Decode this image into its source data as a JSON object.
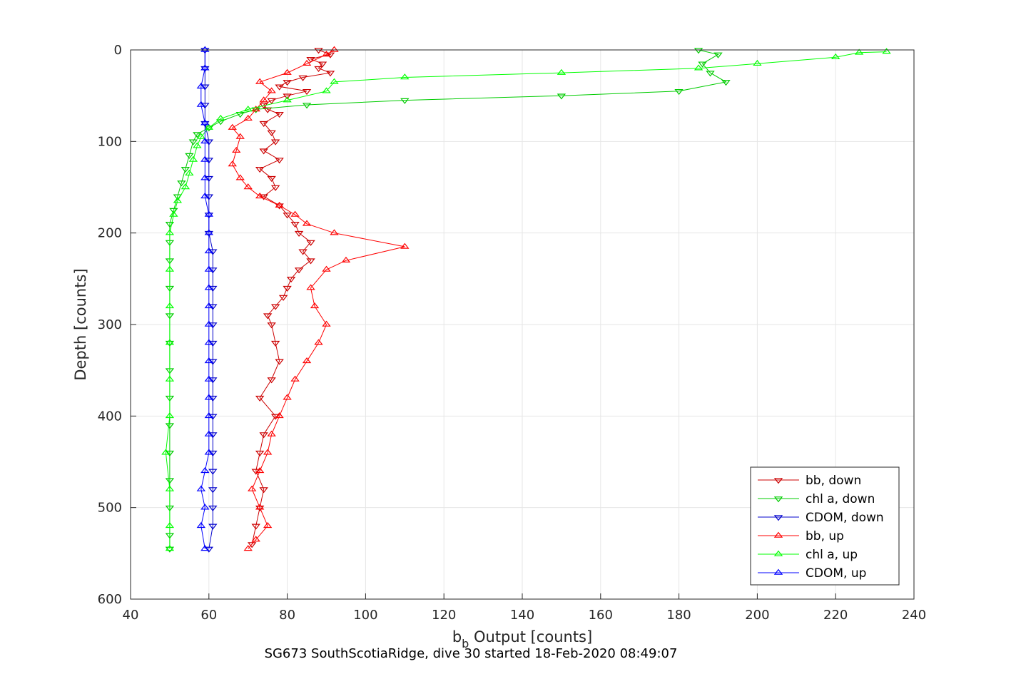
{
  "chart_data": {
    "type": "line",
    "title": "",
    "caption": "SG673 SouthScotiaRidge, dive 30 started 18-Feb-2020 08:49:07",
    "xlabel_main": "b",
    "xlabel_sub": "b",
    "xlabel_rest": " Output [counts]",
    "ylabel": "Depth [counts]",
    "xlim": [
      40,
      240
    ],
    "ylim": [
      0,
      600
    ],
    "y_reversed": true,
    "grid": true,
    "legend_position": "bottom-right",
    "xticks": [
      "40",
      "60",
      "80",
      "100",
      "120",
      "140",
      "160",
      "180",
      "200",
      "220",
      "240"
    ],
    "yticks": [
      "0",
      "100",
      "200",
      "300",
      "400",
      "500",
      "600"
    ],
    "series": [
      {
        "name": "bb, down",
        "color": "#cc0000",
        "marker": "down",
        "points": [
          [
            88,
            0
          ],
          [
            91,
            5
          ],
          [
            86,
            10
          ],
          [
            89,
            15
          ],
          [
            88,
            20
          ],
          [
            91,
            25
          ],
          [
            84,
            30
          ],
          [
            80,
            35
          ],
          [
            78,
            40
          ],
          [
            85,
            45
          ],
          [
            80,
            50
          ],
          [
            76,
            55
          ],
          [
            74,
            60
          ],
          [
            75,
            65
          ],
          [
            78,
            70
          ],
          [
            74,
            80
          ],
          [
            76,
            90
          ],
          [
            77,
            100
          ],
          [
            74,
            110
          ],
          [
            78,
            120
          ],
          [
            73,
            130
          ],
          [
            76,
            140
          ],
          [
            77,
            150
          ],
          [
            74,
            160
          ],
          [
            78,
            170
          ],
          [
            80,
            180
          ],
          [
            82,
            190
          ],
          [
            83,
            200
          ],
          [
            86,
            210
          ],
          [
            84,
            220
          ],
          [
            86,
            230
          ],
          [
            83,
            240
          ],
          [
            81,
            250
          ],
          [
            80,
            260
          ],
          [
            79,
            270
          ],
          [
            77,
            280
          ],
          [
            75,
            290
          ],
          [
            76,
            300
          ],
          [
            77,
            320
          ],
          [
            78,
            340
          ],
          [
            76,
            360
          ],
          [
            73,
            380
          ],
          [
            77,
            400
          ],
          [
            74,
            420
          ],
          [
            73,
            440
          ],
          [
            72,
            460
          ],
          [
            74,
            480
          ],
          [
            73,
            500
          ],
          [
            72,
            520
          ],
          [
            71,
            540
          ]
        ]
      },
      {
        "name": "chl a, down",
        "color": "#00cc00",
        "marker": "down",
        "points": [
          [
            185,
            0
          ],
          [
            190,
            5
          ],
          [
            186,
            15
          ],
          [
            188,
            25
          ],
          [
            192,
            35
          ],
          [
            180,
            45
          ],
          [
            150,
            50
          ],
          [
            110,
            55
          ],
          [
            85,
            60
          ],
          [
            72,
            65
          ],
          [
            68,
            70
          ],
          [
            63,
            78
          ],
          [
            60,
            85
          ],
          [
            57,
            92
          ],
          [
            56,
            100
          ],
          [
            55,
            115
          ],
          [
            54,
            130
          ],
          [
            53,
            145
          ],
          [
            52,
            160
          ],
          [
            51,
            175
          ],
          [
            50,
            190
          ],
          [
            50,
            210
          ],
          [
            50,
            230
          ],
          [
            50,
            260
          ],
          [
            50,
            290
          ],
          [
            50,
            320
          ],
          [
            50,
            350
          ],
          [
            50,
            380
          ],
          [
            50,
            410
          ],
          [
            50,
            440
          ],
          [
            50,
            470
          ],
          [
            50,
            500
          ],
          [
            50,
            530
          ],
          [
            50,
            545
          ]
        ]
      },
      {
        "name": "CDOM, down",
        "color": "#0000cc",
        "marker": "down",
        "points": [
          [
            59,
            0
          ],
          [
            59,
            20
          ],
          [
            59,
            40
          ],
          [
            59,
            60
          ],
          [
            59,
            80
          ],
          [
            60,
            100
          ],
          [
            60,
            120
          ],
          [
            60,
            140
          ],
          [
            60,
            160
          ],
          [
            60,
            180
          ],
          [
            60,
            200
          ],
          [
            61,
            220
          ],
          [
            61,
            240
          ],
          [
            61,
            260
          ],
          [
            61,
            280
          ],
          [
            61,
            300
          ],
          [
            61,
            320
          ],
          [
            61,
            340
          ],
          [
            61,
            360
          ],
          [
            61,
            380
          ],
          [
            61,
            400
          ],
          [
            61,
            420
          ],
          [
            61,
            440
          ],
          [
            61,
            460
          ],
          [
            61,
            480
          ],
          [
            61,
            500
          ],
          [
            61,
            520
          ],
          [
            60,
            545
          ]
        ]
      },
      {
        "name": "bb, up",
        "color": "#ff0000",
        "marker": "up",
        "points": [
          [
            70,
            545
          ],
          [
            72,
            535
          ],
          [
            75,
            520
          ],
          [
            73,
            500
          ],
          [
            71,
            480
          ],
          [
            73,
            460
          ],
          [
            75,
            440
          ],
          [
            76,
            420
          ],
          [
            78,
            400
          ],
          [
            80,
            380
          ],
          [
            82,
            360
          ],
          [
            85,
            340
          ],
          [
            88,
            320
          ],
          [
            90,
            300
          ],
          [
            87,
            280
          ],
          [
            86,
            260
          ],
          [
            90,
            240
          ],
          [
            95,
            230
          ],
          [
            110,
            215
          ],
          [
            92,
            200
          ],
          [
            85,
            190
          ],
          [
            82,
            180
          ],
          [
            78,
            170
          ],
          [
            73,
            160
          ],
          [
            70,
            150
          ],
          [
            68,
            140
          ],
          [
            66,
            125
          ],
          [
            67,
            110
          ],
          [
            68,
            95
          ],
          [
            66,
            85
          ],
          [
            70,
            75
          ],
          [
            72,
            65
          ],
          [
            74,
            55
          ],
          [
            76,
            45
          ],
          [
            73,
            35
          ],
          [
            80,
            25
          ],
          [
            85,
            15
          ],
          [
            90,
            5
          ],
          [
            92,
            0
          ]
        ]
      },
      {
        "name": "chl a, up",
        "color": "#00ff00",
        "marker": "up",
        "points": [
          [
            50,
            545
          ],
          [
            50,
            520
          ],
          [
            50,
            480
          ],
          [
            49,
            440
          ],
          [
            50,
            400
          ],
          [
            50,
            360
          ],
          [
            50,
            320
          ],
          [
            50,
            280
          ],
          [
            50,
            240
          ],
          [
            50,
            200
          ],
          [
            51,
            180
          ],
          [
            52,
            165
          ],
          [
            54,
            150
          ],
          [
            55,
            135
          ],
          [
            56,
            120
          ],
          [
            57,
            105
          ],
          [
            58,
            95
          ],
          [
            60,
            85
          ],
          [
            63,
            75
          ],
          [
            70,
            65
          ],
          [
            80,
            55
          ],
          [
            90,
            45
          ],
          [
            92,
            35
          ],
          [
            110,
            30
          ],
          [
            150,
            25
          ],
          [
            185,
            20
          ],
          [
            200,
            15
          ],
          [
            220,
            8
          ],
          [
            226,
            3
          ],
          [
            233,
            2
          ]
        ]
      },
      {
        "name": "CDOM, up",
        "color": "#0000ff",
        "marker": "up",
        "points": [
          [
            59,
            545
          ],
          [
            58,
            520
          ],
          [
            59,
            500
          ],
          [
            58,
            480
          ],
          [
            59,
            460
          ],
          [
            60,
            440
          ],
          [
            60,
            420
          ],
          [
            60,
            400
          ],
          [
            60,
            380
          ],
          [
            60,
            360
          ],
          [
            60,
            340
          ],
          [
            60,
            320
          ],
          [
            60,
            300
          ],
          [
            60,
            280
          ],
          [
            60,
            260
          ],
          [
            60,
            240
          ],
          [
            60,
            220
          ],
          [
            60,
            200
          ],
          [
            60,
            180
          ],
          [
            59,
            160
          ],
          [
            59,
            140
          ],
          [
            59,
            120
          ],
          [
            59,
            100
          ],
          [
            59,
            80
          ],
          [
            58,
            60
          ],
          [
            58,
            40
          ],
          [
            59,
            20
          ],
          [
            59,
            0
          ]
        ]
      }
    ]
  }
}
